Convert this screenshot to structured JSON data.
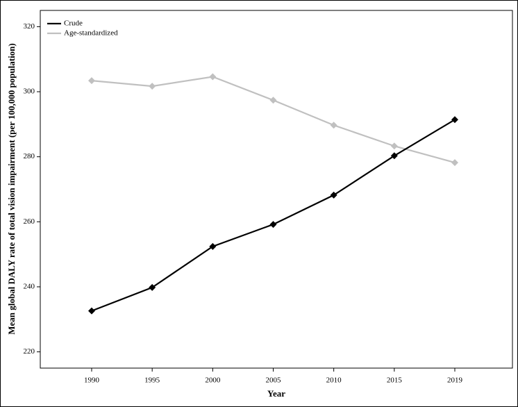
{
  "chart_data": {
    "type": "line",
    "x_label": "Year",
    "y_label": "Mean global DALY rate of total vision impairment (per 100,000 population)",
    "categories": [
      "1990",
      "1995",
      "2000",
      "2005",
      "2010",
      "2015",
      "2019"
    ],
    "series": [
      {
        "name": "Crude",
        "color": "#000000",
        "values": [
          232.6,
          239.8,
          252.4,
          259.2,
          268.2,
          280.3,
          291.4
        ]
      },
      {
        "name": "Age-standardized",
        "color": "#c0c0c0",
        "values": [
          303.4,
          301.7,
          304.6,
          297.4,
          289.7,
          283.3,
          278.2
        ]
      }
    ],
    "ylim": [
      215,
      325
    ],
    "yticks": [
      220,
      240,
      260,
      280,
      300,
      320
    ],
    "legend": "upper left",
    "marker": "diamond"
  }
}
